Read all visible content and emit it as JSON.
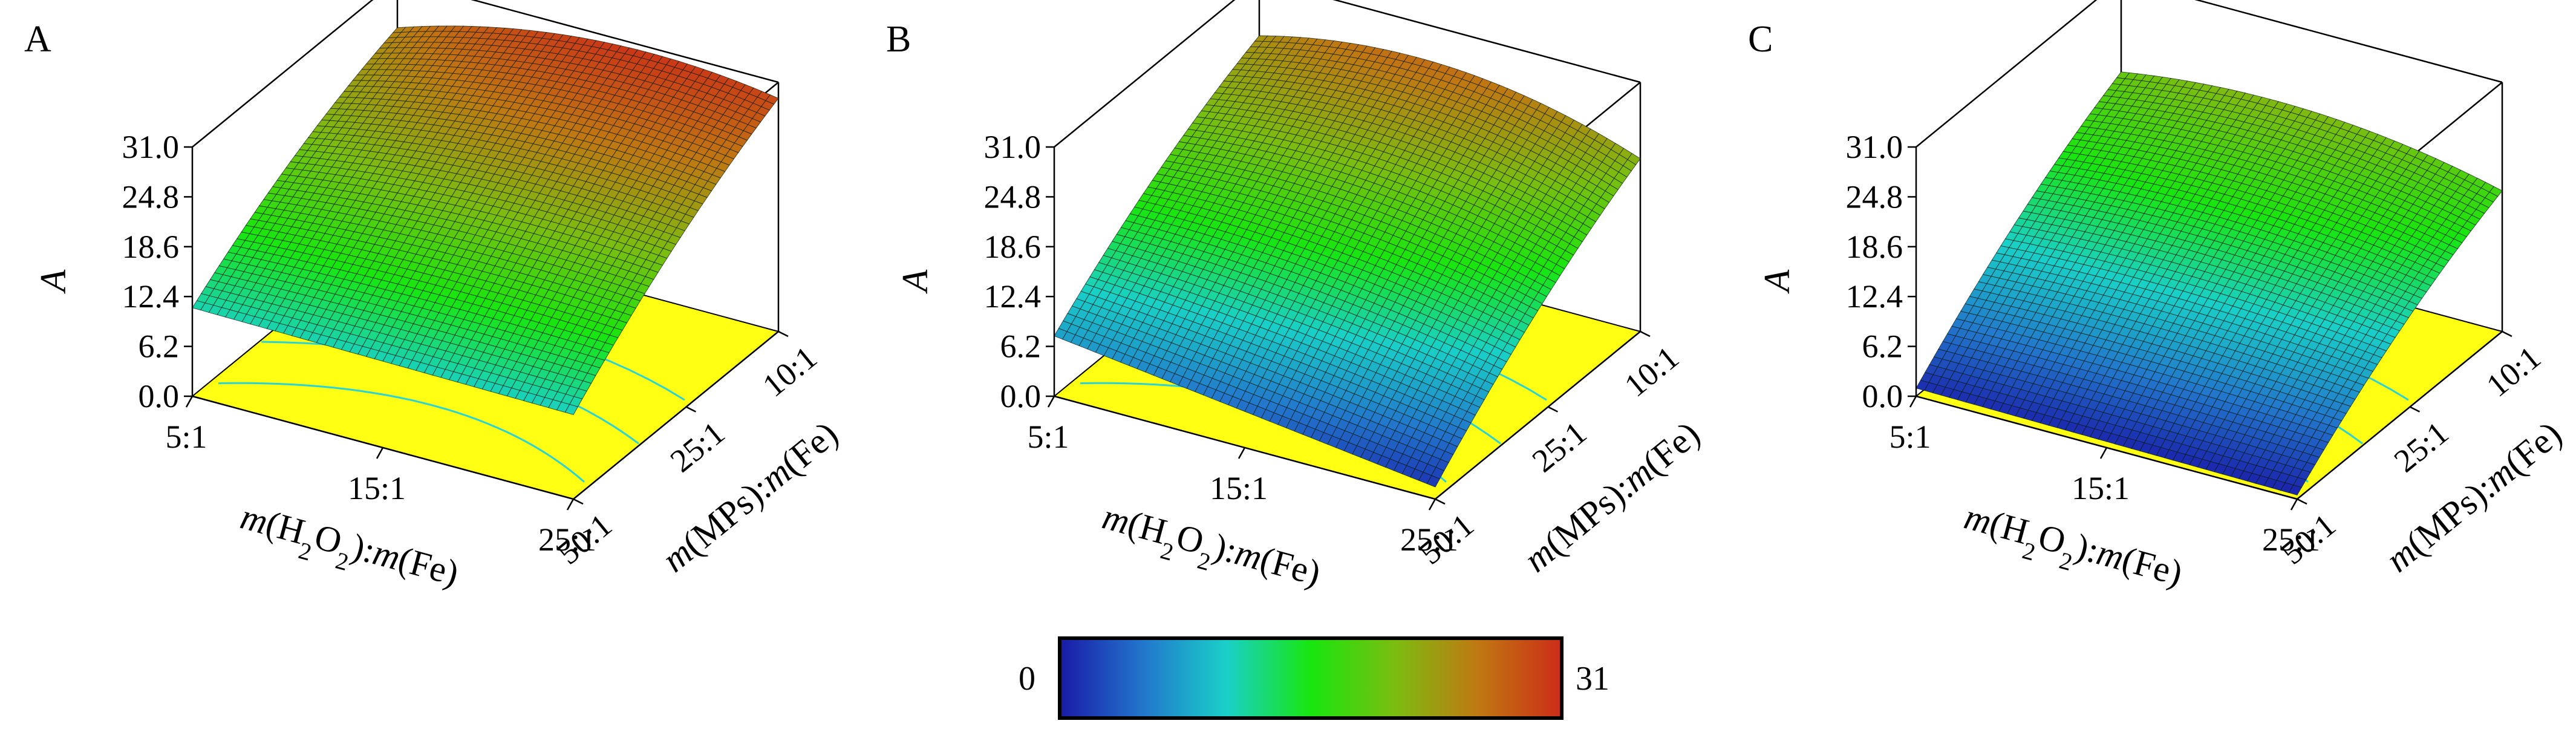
{
  "chart_data": [
    {
      "type": "surface3d",
      "panel_label": "A",
      "zlabel": "A",
      "xlabel": "m(H2O2):m(Fe)",
      "ylabel": "m(MPs):m(Fe)",
      "x_ticks": [
        "5:1",
        "15:1",
        "25:1"
      ],
      "y_ticks": [
        "10:1",
        "25:1",
        "50:1"
      ],
      "z_ticks": [
        "0.0",
        "6.2",
        "12.4",
        "18.6",
        "24.8",
        "31.0"
      ],
      "zlim": [
        0,
        31
      ],
      "corner_values": {
        "x5_y10": 25.0,
        "x25_y10": 29.0,
        "x5_y50": 11.0,
        "x25_y50": 10.5
      },
      "peak": {
        "x": "15:1",
        "y": "10:1",
        "value": 30.0
      },
      "floor_contours": true
    },
    {
      "type": "surface3d",
      "panel_label": "B",
      "zlabel": "A",
      "xlabel": "m(H2O2):m(Fe)",
      "ylabel": "m(MPs):m(Fe)",
      "x_ticks": [
        "5:1",
        "15:1",
        "25:1"
      ],
      "y_ticks": [
        "10:1",
        "25:1",
        "50:1"
      ],
      "z_ticks": [
        "0.0",
        "6.2",
        "12.4",
        "18.6",
        "24.8",
        "31.0"
      ],
      "zlim": [
        0,
        31
      ],
      "corner_values": {
        "x5_y10": 24.0,
        "x25_y10": 21.5,
        "x5_y50": 7.5,
        "x25_y50": 1.5
      },
      "peak": {
        "x": "15:1",
        "y": "10:1",
        "value": 26.5
      },
      "floor_contours": true
    },
    {
      "type": "surface3d",
      "panel_label": "C",
      "zlabel": "A",
      "xlabel": "m(H2O2):m(Fe)",
      "ylabel": "m(MPs):m(Fe)",
      "x_ticks": [
        "5:1",
        "15:1",
        "25:1"
      ],
      "y_ticks": [
        "10:1",
        "25:1",
        "50:1"
      ],
      "z_ticks": [
        "0.0",
        "6.2",
        "12.4",
        "18.6",
        "24.8",
        "31.0"
      ],
      "zlim": [
        0,
        31
      ],
      "corner_values": {
        "x5_y10": 19.5,
        "x25_y10": 17.5,
        "x5_y50": 1.0,
        "x25_y50": 0.5
      },
      "peak": {
        "x": "15:1",
        "y": "10:1",
        "value": 21.0
      },
      "floor_contours": true
    }
  ],
  "colorbar": {
    "min_label": "0",
    "max_label": "31",
    "colors": [
      "#1a1aa8",
      "#2277cc",
      "#19d0c8",
      "#18e60e",
      "#7bbd10",
      "#c07812",
      "#cc2d18"
    ]
  },
  "floor_color": "#ffff14",
  "contour_color": "#28d4d4"
}
